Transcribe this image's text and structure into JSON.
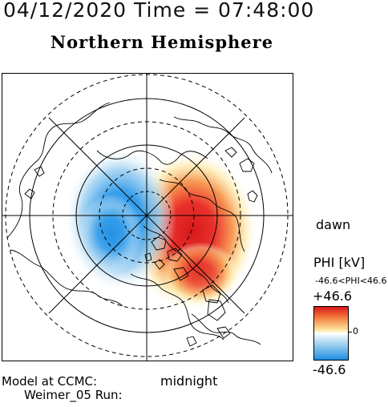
{
  "header": {
    "text": "04/12/2020 Time = 07:48:00"
  },
  "map": {
    "title": "Northern Hemisphere",
    "dawn_label": "dawn",
    "midnight_label": "midnight"
  },
  "colorbar": {
    "variable_label": "PHI [kV]",
    "range_label": "-46.6<PHI<46.6",
    "max_label": "+46.6",
    "zero_label": "0",
    "min_label": "-46.6",
    "max_color": "#d7181b",
    "min_color": "#1e8fe3",
    "mid_color": "#ffffff"
  },
  "footer": {
    "model_label": "Model at CCMC:",
    "run_label": "Weimer_05 Run:"
  }
}
